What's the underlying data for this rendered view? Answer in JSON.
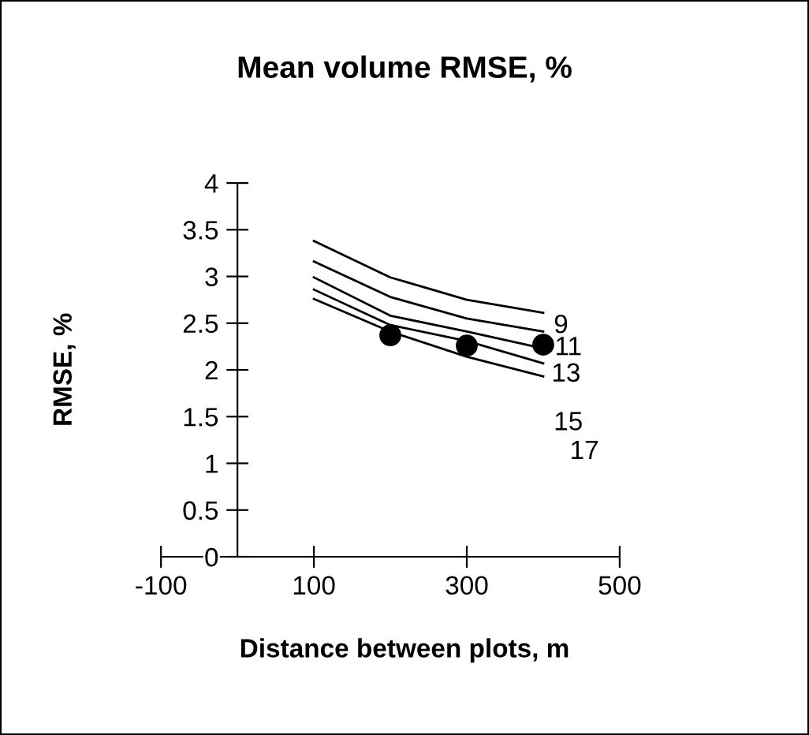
{
  "chart_data": {
    "type": "line",
    "title": "Mean volume RMSE, %",
    "xlabel": "Distance between plots, m",
    "ylabel": "RMSE, %",
    "x": [
      100,
      200,
      300,
      400
    ],
    "series": [
      {
        "color": "#000000",
        "values": [
          3.38,
          2.99,
          2.75,
          2.61
        ]
      },
      {
        "color": "#000000",
        "values": [
          3.16,
          2.78,
          2.55,
          2.41
        ]
      },
      {
        "color": "#000000",
        "values": [
          2.99,
          2.58,
          2.41,
          2.23
        ]
      },
      {
        "color": "#000000",
        "values": [
          2.86,
          2.48,
          2.31,
          2.07
        ]
      },
      {
        "color": "#000000",
        "values": [
          2.76,
          2.41,
          2.14,
          1.93
        ]
      },
      {
        "type": "scatter",
        "marker": "circle",
        "color": "#000000",
        "x": [
          200,
          300,
          400
        ],
        "values": [
          2.37,
          2.26,
          2.27
        ]
      }
    ],
    "annotations": [
      "9",
      "11",
      "13",
      "15",
      "17"
    ],
    "xlim": [
      -100,
      500
    ],
    "xticks": [
      -100,
      100,
      300,
      500
    ],
    "ylim": [
      0,
      4
    ],
    "yticks": [
      0,
      0.5,
      1,
      1.5,
      2,
      2.5,
      3,
      3.5,
      4
    ],
    "marker": "none",
    "line_style": "solid",
    "grid": false,
    "legend": false
  }
}
